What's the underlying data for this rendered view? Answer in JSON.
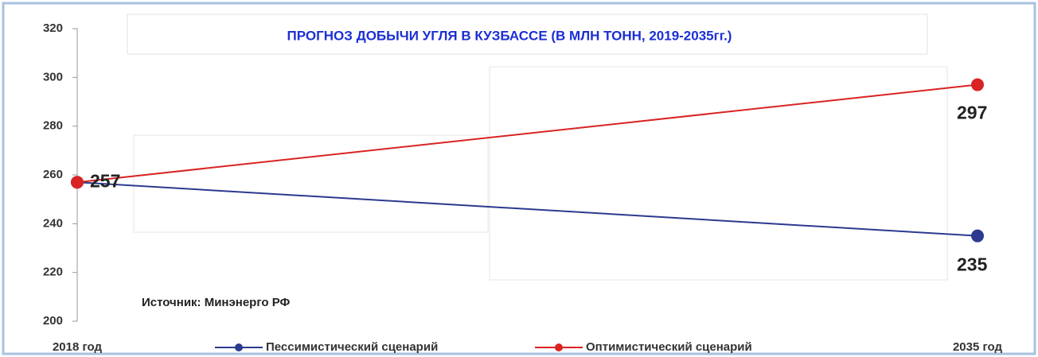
{
  "chart_data": {
    "type": "line",
    "title": "ПРОГНОЗ ДОБЫЧИ УГЛЯ В КУЗБАССЕ (В МЛН ТОНН, 2019-2035гг.)",
    "annotation": "Источник: Минэнерго РФ",
    "categories": [
      "2018 год",
      "2035 год"
    ],
    "series": [
      {
        "name": "Пессимистический сценарий",
        "color": "#2b3a8f",
        "values": [
          257,
          235
        ]
      },
      {
        "name": "Оптимистический сценарий",
        "color": "#d92323",
        "values": [
          257,
          297
        ]
      }
    ],
    "ylim": [
      200,
      320
    ],
    "yticks": [
      200,
      220,
      240,
      260,
      280,
      300,
      320
    ],
    "grid": false,
    "legend": "bottom"
  }
}
